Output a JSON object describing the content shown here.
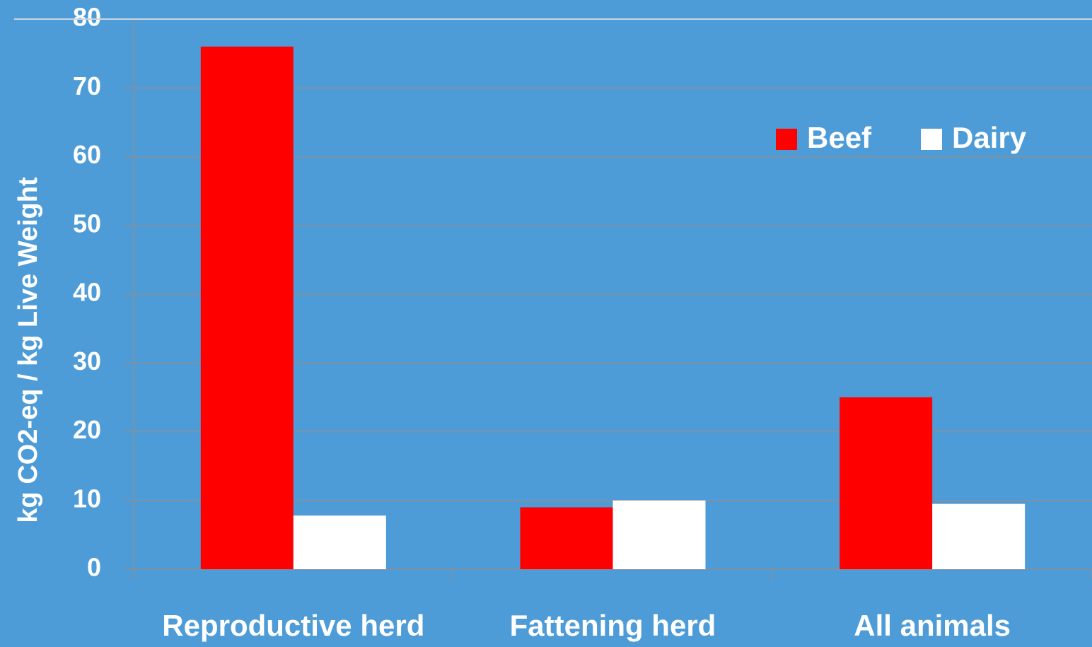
{
  "chart_data": {
    "type": "bar",
    "y_label": "kg CO2-eq / kg Live Weight",
    "categories": [
      "Reproductive herd",
      "Fattening herd",
      "All animals"
    ],
    "series": [
      {
        "name": "Beef",
        "color": "#ff0000",
        "values": [
          76,
          9,
          25
        ]
      },
      {
        "name": "Dairy",
        "color": "#ffffff",
        "values": [
          7.8,
          10,
          9.5
        ]
      }
    ],
    "ylim": [
      0,
      80
    ],
    "yticks": [
      0,
      10,
      20,
      30,
      40,
      50,
      60,
      70,
      80
    ],
    "grid": true,
    "legend": "top-right"
  }
}
